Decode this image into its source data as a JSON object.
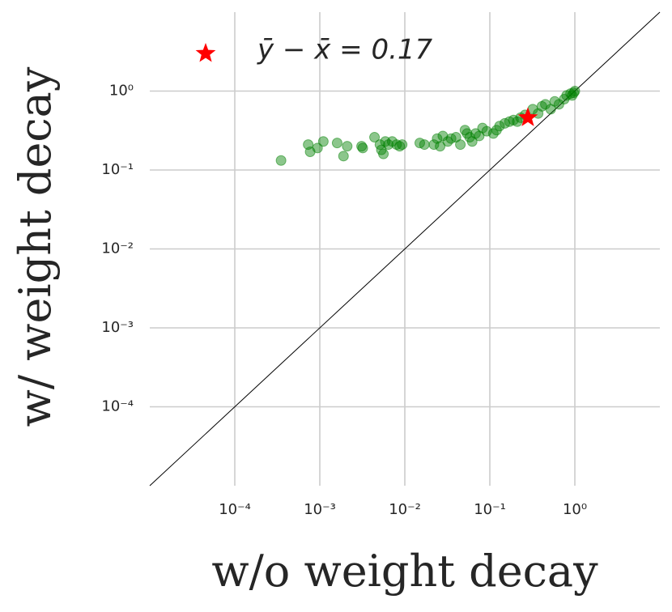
{
  "chart_data": {
    "type": "scatter",
    "xlabel": "w/o weight decay",
    "ylabel": "w/ weight decay",
    "xscale": "log",
    "yscale": "log",
    "xlim": [
      1e-05,
      10
    ],
    "ylim": [
      1e-05,
      10
    ],
    "xticks": [
      {
        "value": 0.0001,
        "label": "10⁻⁴"
      },
      {
        "value": 0.001,
        "label": "10⁻³"
      },
      {
        "value": 0.01,
        "label": "10⁻²"
      },
      {
        "value": 0.1,
        "label": "10⁻¹"
      },
      {
        "value": 1,
        "label": "10⁰"
      }
    ],
    "yticks": [
      {
        "value": 0.0001,
        "label": "10⁻⁴"
      },
      {
        "value": 0.001,
        "label": "10⁻³"
      },
      {
        "value": 0.01,
        "label": "10⁻²"
      },
      {
        "value": 0.1,
        "label": "10⁻¹"
      },
      {
        "value": 1,
        "label": "10⁰"
      }
    ],
    "grid": true,
    "diagonal": true,
    "legend": "upper left",
    "series": [
      {
        "color": "#008000",
        "marker": "circle",
        "x": [
          0.00035,
          0.00073,
          0.00077,
          0.00094,
          0.0011,
          0.0016,
          0.0019,
          0.0021,
          0.0031,
          0.0032,
          0.0044,
          0.0051,
          0.0053,
          0.0056,
          0.0059,
          0.0064,
          0.0071,
          0.008,
          0.0087,
          0.0093,
          0.015,
          0.017,
          0.022,
          0.024,
          0.026,
          0.028,
          0.032,
          0.035,
          0.04,
          0.045,
          0.051,
          0.054,
          0.058,
          0.062,
          0.068,
          0.075,
          0.082,
          0.092,
          0.11,
          0.12,
          0.13,
          0.15,
          0.17,
          0.19,
          0.21,
          0.23,
          0.26,
          0.32,
          0.37,
          0.41,
          0.45,
          0.52,
          0.58,
          0.65,
          0.75,
          0.8,
          0.89,
          0.93,
          0.97,
          1.0
        ],
        "values": [
          0.132,
          0.21,
          0.17,
          0.19,
          0.23,
          0.22,
          0.15,
          0.2,
          0.2,
          0.19,
          0.26,
          0.21,
          0.18,
          0.16,
          0.23,
          0.21,
          0.23,
          0.21,
          0.2,
          0.21,
          0.22,
          0.21,
          0.21,
          0.25,
          0.2,
          0.27,
          0.23,
          0.25,
          0.26,
          0.21,
          0.32,
          0.29,
          0.26,
          0.23,
          0.29,
          0.27,
          0.34,
          0.31,
          0.29,
          0.32,
          0.36,
          0.39,
          0.41,
          0.43,
          0.41,
          0.46,
          0.5,
          0.59,
          0.52,
          0.64,
          0.68,
          0.59,
          0.74,
          0.68,
          0.79,
          0.88,
          0.93,
          0.88,
          0.95,
          1.0
        ]
      },
      {
        "name": "ȳ − x̄ = 0.17",
        "color": "#ff0000",
        "marker": "star",
        "x": [
          0.28
        ],
        "values": [
          0.46
        ]
      }
    ]
  }
}
